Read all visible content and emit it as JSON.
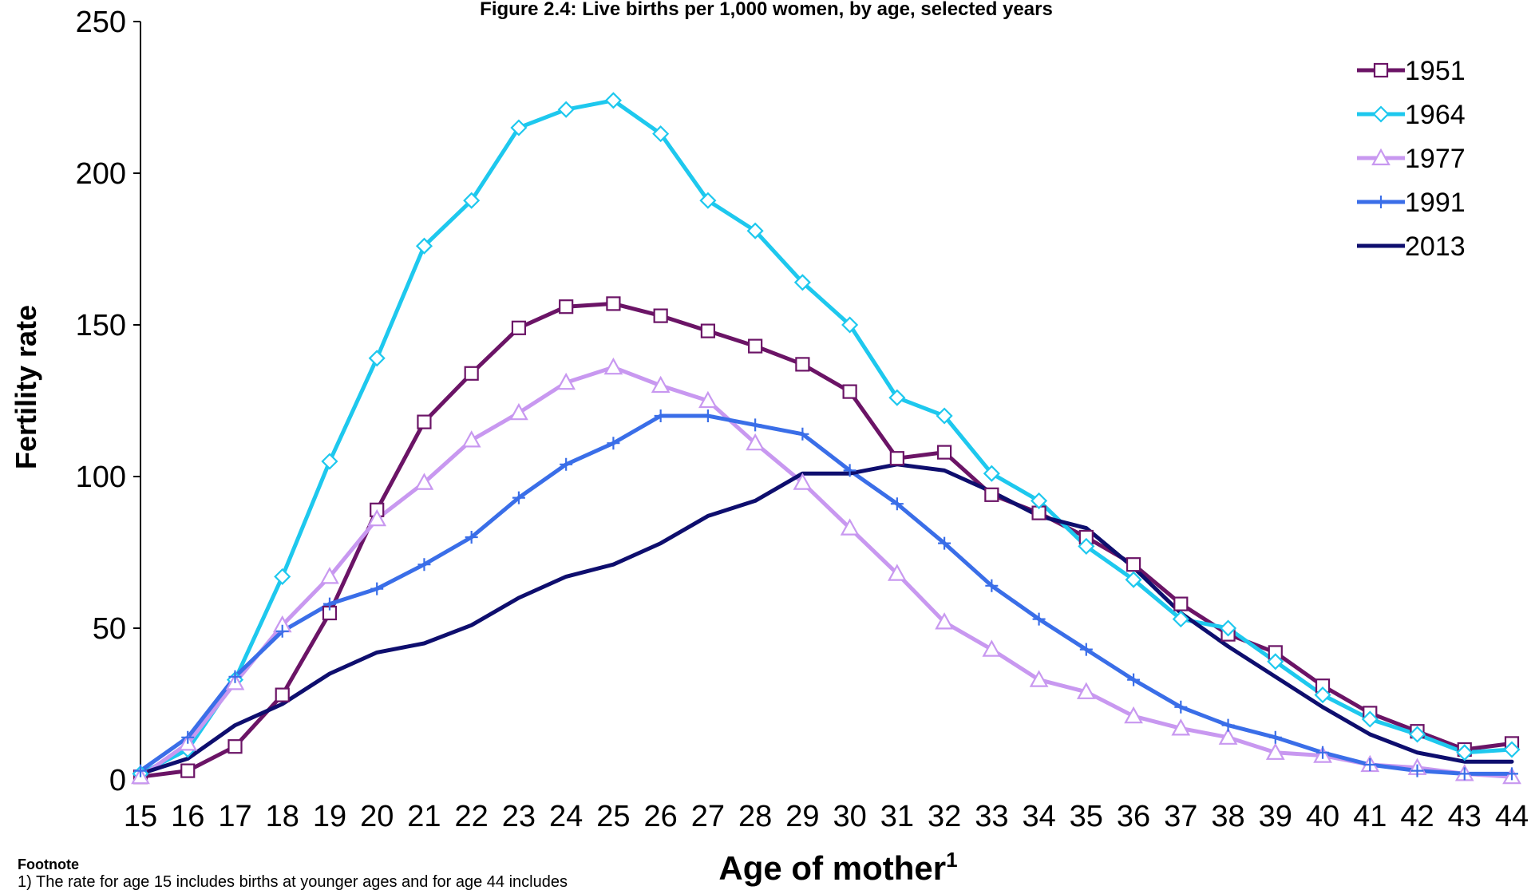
{
  "chart_data": {
    "type": "line",
    "title": "Figure 2.4: Live births per 1,000 women, by age, selected years",
    "xlabel": "Age of mother",
    "xlabel_superscript": "1",
    "ylabel": "Fertility rate",
    "ylim": [
      0,
      250
    ],
    "yticks": [
      0,
      50,
      100,
      150,
      200,
      250
    ],
    "grid": false,
    "legend_position": "top-right",
    "x": [
      15,
      16,
      17,
      18,
      19,
      20,
      21,
      22,
      23,
      24,
      25,
      26,
      27,
      28,
      29,
      30,
      31,
      32,
      33,
      34,
      35,
      36,
      37,
      38,
      39,
      40,
      41,
      42,
      43,
      44
    ],
    "series": [
      {
        "name": "1951",
        "color": "#6B1466",
        "marker": "square",
        "values": [
          1,
          3,
          11,
          28,
          55,
          89,
          118,
          134,
          149,
          156,
          157,
          153,
          148,
          143,
          137,
          128,
          106,
          108,
          94,
          88,
          80,
          71,
          58,
          48,
          42,
          31,
          22,
          16,
          10,
          12
        ]
      },
      {
        "name": "1964",
        "color": "#1EC8EE",
        "marker": "diamond",
        "values": [
          2,
          10,
          33,
          67,
          105,
          139,
          176,
          191,
          215,
          221,
          224,
          213,
          191,
          181,
          164,
          150,
          126,
          120,
          101,
          92,
          77,
          66,
          53,
          50,
          39,
          28,
          20,
          15,
          9,
          10
        ]
      },
      {
        "name": "1977",
        "color": "#C898F0",
        "marker": "triangle",
        "values": [
          1,
          12,
          32,
          51,
          67,
          86,
          98,
          112,
          121,
          131,
          136,
          130,
          125,
          111,
          98,
          83,
          68,
          52,
          43,
          33,
          29,
          21,
          17,
          14,
          9,
          8,
          5,
          4,
          2,
          1
        ]
      },
      {
        "name": "1991",
        "color": "#3A6EE8",
        "marker": "plus",
        "values": [
          3,
          14,
          34,
          49,
          58,
          63,
          71,
          80,
          93,
          104,
          111,
          120,
          120,
          117,
          114,
          102,
          91,
          78,
          64,
          53,
          43,
          33,
          24,
          18,
          14,
          9,
          5,
          3,
          2,
          2
        ]
      },
      {
        "name": "2013",
        "color": "#0E0E6E",
        "marker": "none",
        "values": [
          2,
          7,
          18,
          25,
          35,
          42,
          45,
          51,
          60,
          67,
          71,
          78,
          87,
          92,
          101,
          101,
          104,
          102,
          95,
          87,
          83,
          70,
          55,
          44,
          34,
          24,
          15,
          9,
          6,
          6
        ]
      }
    ]
  },
  "footnote": {
    "heading": "Footnote",
    "text": "1) The rate for age 15 includes births at younger ages and for age 44 includes"
  }
}
